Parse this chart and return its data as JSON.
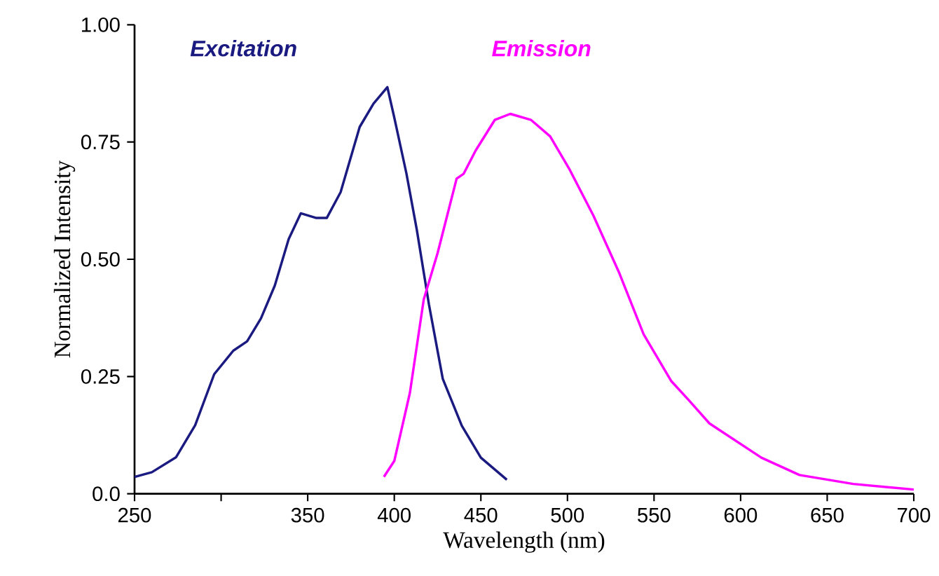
{
  "chart_data": {
    "type": "line",
    "xlabel": "Wavelength (nm)",
    "ylabel": "Normalized Intensity",
    "xlim": [
      250,
      700
    ],
    "ylim": [
      0,
      1
    ],
    "xticks": [
      250,
      {
        "value": 300,
        "label": null
      },
      350,
      400,
      450,
      500,
      550,
      600,
      650,
      700
    ],
    "yticks": [
      {
        "value": 0,
        "label": "0.0"
      },
      {
        "value": 0.25,
        "label": "0.25"
      },
      {
        "value": 0.5,
        "label": "0.50"
      },
      {
        "value": 0.75,
        "label": "0.75"
      },
      {
        "value": 1,
        "label": "1.00"
      }
    ],
    "grid": false,
    "legend": false,
    "marker": "none",
    "line_style": "solid",
    "series": [
      {
        "name": "Excitation",
        "color": "#1a1a80",
        "x": [
          250,
          260,
          274,
          285,
          296,
          307,
          315,
          323,
          331,
          339,
          346,
          355,
          361,
          369,
          380,
          388,
          396,
          400,
          407,
          413,
          420,
          428,
          439,
          450,
          465
        ],
        "values": [
          0.036,
          0.046,
          0.078,
          0.146,
          0.255,
          0.305,
          0.325,
          0.374,
          0.444,
          0.543,
          0.598,
          0.588,
          0.588,
          0.643,
          0.782,
          0.832,
          0.867,
          0.802,
          0.683,
          0.563,
          0.404,
          0.245,
          0.145,
          0.077,
          0.03
        ]
      },
      {
        "name": "Emission",
        "color": "#ff00ff",
        "x": [
          394,
          400,
          409,
          417,
          425,
          436,
          440,
          447,
          458,
          467,
          479,
          490,
          501,
          515,
          530,
          544,
          560,
          570,
          582,
          612,
          634,
          665,
          700
        ],
        "values": [
          0.036,
          0.07,
          0.215,
          0.414,
          0.513,
          0.672,
          0.682,
          0.732,
          0.797,
          0.81,
          0.797,
          0.762,
          0.693,
          0.593,
          0.47,
          0.34,
          0.24,
          0.2,
          0.15,
          0.077,
          0.04,
          0.021,
          0.009
        ]
      }
    ]
  }
}
